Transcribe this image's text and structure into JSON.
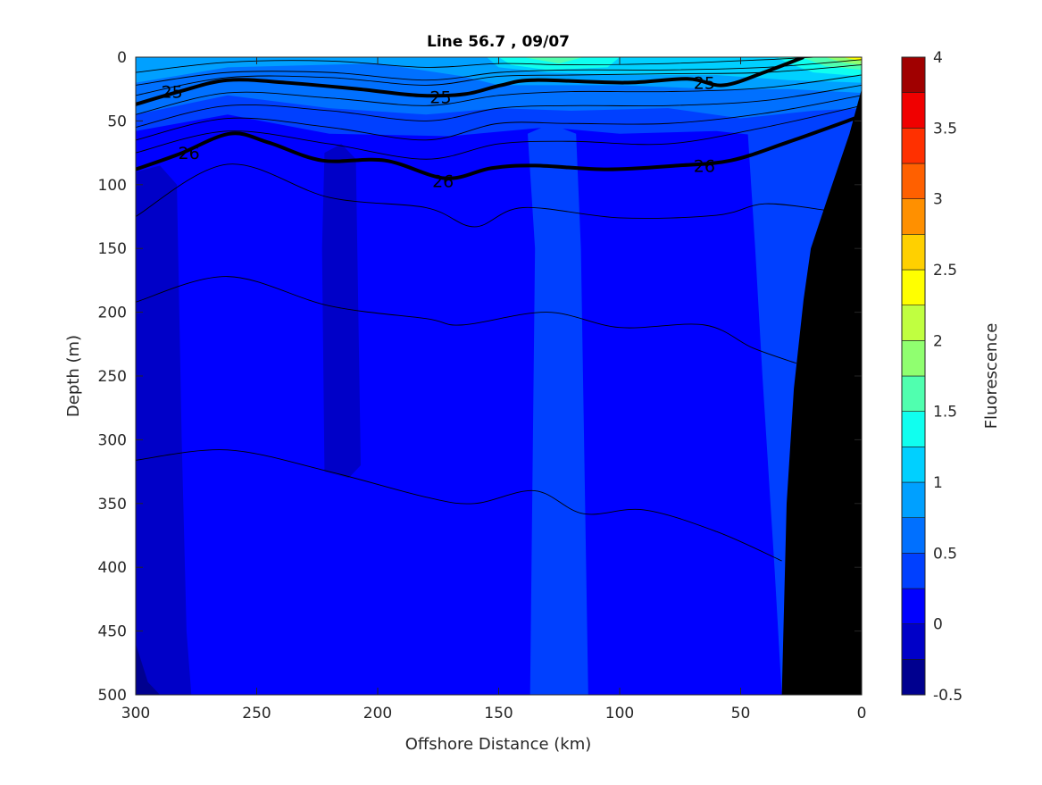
{
  "chart_data": {
    "type": "heatmap",
    "subtype": "filled-contour",
    "title": "Line 56.7 , 09/07",
    "xlabel": "Offshore Distance (km)",
    "ylabel": "Depth (m)",
    "xlim": [
      300,
      0
    ],
    "ylim": [
      0,
      500
    ],
    "x_reversed": true,
    "y_reversed": true,
    "xticks": [
      "300",
      "250",
      "200",
      "150",
      "100",
      "50",
      "0"
    ],
    "yticks": [
      "0",
      "50",
      "100",
      "150",
      "200",
      "250",
      "300",
      "350",
      "400",
      "450",
      "500"
    ],
    "colorbar": {
      "label": "Fluorescence",
      "range": [
        -0.5,
        4
      ],
      "step": 0.25,
      "ticks": [
        "-0.5",
        "0",
        "0.5",
        "1",
        "1.5",
        "2",
        "2.5",
        "3",
        "3.5",
        "4"
      ],
      "colors": [
        "#00008f",
        "#0000c8",
        "#0000ff",
        "#0040ff",
        "#0070ff",
        "#00a0ff",
        "#00d0ff",
        "#10ffef",
        "#50ffaf",
        "#90ff70",
        "#c0ff40",
        "#ffff00",
        "#ffd000",
        "#ff9000",
        "#ff6000",
        "#ff3000",
        "#f00000",
        "#a00000"
      ]
    },
    "background_level": 0,
    "regions": [
      {
        "level": -0.25,
        "points": [
          [
            300,
            90
          ],
          [
            290,
            85
          ],
          [
            283,
            100
          ],
          [
            281,
            300
          ],
          [
            279,
            450
          ],
          [
            277,
            500
          ],
          [
            300,
            500
          ]
        ]
      },
      {
        "level": -0.25,
        "points": [
          [
            222,
            75
          ],
          [
            215,
            68
          ],
          [
            209,
            80
          ],
          [
            207,
            320
          ],
          [
            212,
            330
          ],
          [
            222,
            325
          ],
          [
            223,
            150
          ]
        ]
      },
      {
        "level": -0.5,
        "points": [
          [
            300,
            460
          ],
          [
            295,
            490
          ],
          [
            290,
            500
          ],
          [
            300,
            500
          ]
        ]
      },
      {
        "level": 0.25,
        "points": [
          [
            300,
            0
          ],
          [
            0,
            0
          ],
          [
            0,
            60
          ],
          [
            40,
            62
          ],
          [
            60,
            58
          ],
          [
            100,
            60
          ],
          [
            130,
            55
          ],
          [
            170,
            62
          ],
          [
            220,
            60
          ],
          [
            262,
            45
          ],
          [
            300,
            58
          ]
        ]
      },
      {
        "level": 0.25,
        "points": [
          [
            138,
            60
          ],
          [
            132,
            55
          ],
          [
            125,
            55
          ],
          [
            118,
            60
          ],
          [
            116,
            150
          ],
          [
            113,
            500
          ],
          [
            137,
            500
          ],
          [
            135,
            150
          ]
        ]
      },
      {
        "level": 0.25,
        "points": [
          [
            60,
            55
          ],
          [
            47,
            60
          ],
          [
            44,
            150
          ],
          [
            41,
            250
          ],
          [
            36,
            400
          ],
          [
            33,
            500
          ],
          [
            0,
            500
          ],
          [
            0,
            25
          ]
        ]
      },
      {
        "level": 0.5,
        "points": [
          [
            300,
            0
          ],
          [
            0,
            0
          ],
          [
            0,
            40
          ],
          [
            20,
            42
          ],
          [
            50,
            48
          ],
          [
            80,
            40
          ],
          [
            120,
            42
          ],
          [
            150,
            40
          ],
          [
            180,
            45
          ],
          [
            220,
            40
          ],
          [
            262,
            30
          ],
          [
            300,
            45
          ]
        ]
      },
      {
        "level": 0.75,
        "points": [
          [
            300,
            0
          ],
          [
            0,
            0
          ],
          [
            0,
            28
          ],
          [
            30,
            25
          ],
          [
            60,
            25
          ],
          [
            100,
            22
          ],
          [
            150,
            22
          ],
          [
            165,
            15
          ],
          [
            200,
            5
          ],
          [
            262,
            8
          ],
          [
            300,
            20
          ]
        ]
      },
      {
        "level": 1.0,
        "points": [
          [
            155,
            0
          ],
          [
            0,
            0
          ],
          [
            0,
            20
          ],
          [
            30,
            18
          ],
          [
            60,
            14
          ],
          [
            100,
            14
          ],
          [
            130,
            12
          ],
          [
            150,
            8
          ]
        ]
      },
      {
        "level": 1.25,
        "points": [
          [
            150,
            0
          ],
          [
            100,
            0
          ],
          [
            105,
            8
          ],
          [
            130,
            10
          ],
          [
            145,
            6
          ]
        ]
      },
      {
        "level": 1.25,
        "points": [
          [
            35,
            0
          ],
          [
            0,
            0
          ],
          [
            0,
            15
          ],
          [
            20,
            12
          ],
          [
            30,
            5
          ]
        ]
      },
      {
        "level": 1.5,
        "points": [
          [
            140,
            0
          ],
          [
            115,
            0
          ],
          [
            125,
            5
          ]
        ]
      },
      {
        "level": 1.5,
        "points": [
          [
            25,
            0
          ],
          [
            0,
            0
          ],
          [
            0,
            10
          ],
          [
            15,
            7
          ]
        ]
      },
      {
        "level": 1.75,
        "points": [
          [
            15,
            0
          ],
          [
            0,
            0
          ],
          [
            0,
            6
          ],
          [
            8,
            4
          ]
        ]
      },
      {
        "level": 2.25,
        "points": [
          [
            8,
            0
          ],
          [
            0,
            0
          ],
          [
            0,
            3
          ]
        ]
      }
    ],
    "bathymetry": [
      [
        0,
        25
      ],
      [
        5,
        60
      ],
      [
        14,
        110
      ],
      [
        21,
        150
      ],
      [
        24,
        190
      ],
      [
        28,
        260
      ],
      [
        31,
        350
      ],
      [
        33,
        500
      ],
      [
        0,
        500
      ]
    ],
    "density_contours": [
      {
        "level": "25",
        "bold": true,
        "points": [
          [
            300,
            37
          ],
          [
            282,
            27
          ],
          [
            262,
            18
          ],
          [
            238,
            20
          ],
          [
            208,
            25
          ],
          [
            183,
            30
          ],
          [
            164,
            29
          ],
          [
            149,
            22
          ],
          [
            135,
            18
          ],
          [
            98,
            20
          ],
          [
            72,
            17
          ],
          [
            57,
            22
          ],
          [
            39,
            11
          ],
          [
            24,
            0
          ]
        ],
        "labels": [
          [
            285,
            27
          ],
          [
            174,
            31
          ],
          [
            65,
            20
          ]
        ]
      },
      {
        "level": "26",
        "bold": true,
        "points": [
          [
            300,
            88
          ],
          [
            282,
            76
          ],
          [
            261,
            60
          ],
          [
            245,
            67
          ],
          [
            223,
            81
          ],
          [
            197,
            81
          ],
          [
            172,
            95
          ],
          [
            153,
            87
          ],
          [
            135,
            85
          ],
          [
            105,
            88
          ],
          [
            76,
            85
          ],
          [
            54,
            81
          ],
          [
            31,
            67
          ],
          [
            0,
            46
          ]
        ],
        "labels": [
          [
            278,
            75
          ],
          [
            173,
            97
          ],
          [
            65,
            85
          ]
        ]
      },
      {
        "bold": false,
        "points": [
          [
            300,
            12
          ],
          [
            262,
            4
          ],
          [
            220,
            3
          ],
          [
            180,
            8
          ],
          [
            150,
            5
          ],
          [
            120,
            6
          ],
          [
            80,
            5
          ],
          [
            40,
            2
          ],
          [
            20,
            0
          ]
        ]
      },
      {
        "bold": false,
        "points": [
          [
            300,
            22
          ],
          [
            262,
            12
          ],
          [
            220,
            12
          ],
          [
            180,
            18
          ],
          [
            150,
            12
          ],
          [
            120,
            10
          ],
          [
            80,
            10
          ],
          [
            40,
            8
          ],
          [
            0,
            2
          ]
        ]
      },
      {
        "bold": false,
        "points": [
          [
            300,
            30
          ],
          [
            262,
            16
          ],
          [
            220,
            16
          ],
          [
            180,
            22
          ],
          [
            150,
            15
          ],
          [
            120,
            14
          ],
          [
            80,
            13
          ],
          [
            40,
            12
          ],
          [
            0,
            6
          ]
        ]
      },
      {
        "bold": false,
        "points": [
          [
            300,
            45
          ],
          [
            262,
            28
          ],
          [
            220,
            32
          ],
          [
            180,
            38
          ],
          [
            150,
            30
          ],
          [
            120,
            27
          ],
          [
            80,
            27
          ],
          [
            40,
            24
          ],
          [
            0,
            14
          ]
        ]
      },
      {
        "bold": false,
        "points": [
          [
            300,
            55
          ],
          [
            262,
            38
          ],
          [
            220,
            42
          ],
          [
            180,
            50
          ],
          [
            150,
            40
          ],
          [
            120,
            38
          ],
          [
            80,
            38
          ],
          [
            40,
            34
          ],
          [
            0,
            22
          ]
        ]
      },
      {
        "bold": false,
        "points": [
          [
            300,
            65
          ],
          [
            262,
            48
          ],
          [
            220,
            55
          ],
          [
            180,
            65
          ],
          [
            150,
            52
          ],
          [
            120,
            52
          ],
          [
            80,
            52
          ],
          [
            40,
            44
          ],
          [
            0,
            30
          ]
        ]
      },
      {
        "bold": false,
        "points": [
          [
            300,
            75
          ],
          [
            262,
            58
          ],
          [
            220,
            68
          ],
          [
            180,
            80
          ],
          [
            150,
            68
          ],
          [
            120,
            66
          ],
          [
            80,
            68
          ],
          [
            40,
            55
          ],
          [
            0,
            38
          ]
        ]
      },
      {
        "bold": false,
        "points": [
          [
            300,
            125
          ],
          [
            262,
            84
          ],
          [
            220,
            110
          ],
          [
            180,
            118
          ],
          [
            160,
            133
          ],
          [
            140,
            118
          ],
          [
            100,
            126
          ],
          [
            60,
            124
          ],
          [
            40,
            115
          ],
          [
            15,
            120
          ]
        ]
      },
      {
        "bold": false,
        "points": [
          [
            300,
            192
          ],
          [
            262,
            172
          ],
          [
            220,
            195
          ],
          [
            180,
            205
          ],
          [
            165,
            210
          ],
          [
            130,
            200
          ],
          [
            100,
            212
          ],
          [
            65,
            210
          ],
          [
            45,
            228
          ],
          [
            27,
            240
          ]
        ]
      },
      {
        "bold": false,
        "points": [
          [
            300,
            316
          ],
          [
            262,
            308
          ],
          [
            220,
            325
          ],
          [
            180,
            345
          ],
          [
            160,
            350
          ],
          [
            135,
            340
          ],
          [
            115,
            358
          ],
          [
            90,
            355
          ],
          [
            60,
            372
          ],
          [
            33,
            395
          ]
        ]
      }
    ]
  }
}
